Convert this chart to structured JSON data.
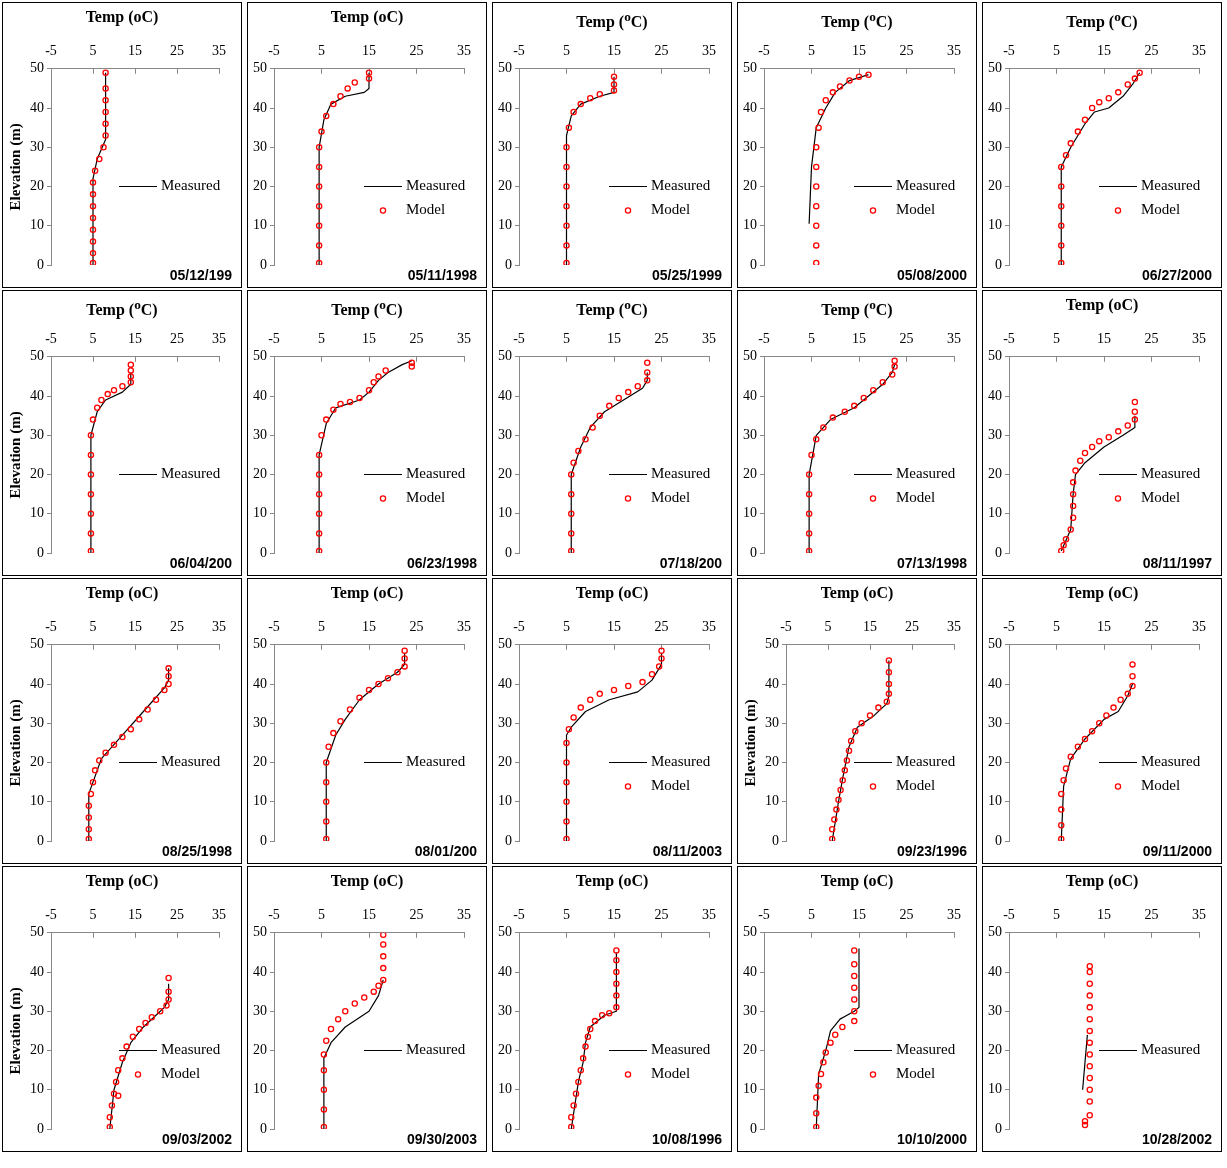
{
  "chart_data": [
    {
      "type": "line",
      "title": "Temp (oC)",
      "ylabel": "Elevation (m)",
      "xlim": [
        -5,
        35
      ],
      "xticks": [
        -5,
        5,
        15,
        25,
        35
      ],
      "ylim": [
        0,
        50
      ],
      "yticks": [
        0,
        10,
        20,
        30,
        40,
        50
      ],
      "legend": "right",
      "annotations": [
        "05/12/199"
      ],
      "series": [
        {
          "name": "Measured",
          "type": "line",
          "color": "#000000",
          "x": [
            5,
            5,
            6,
            8,
            8
          ],
          "values": [
            0,
            22,
            27,
            32,
            49
          ]
        },
        {
          "type": "scatter",
          "color": "#ff0000",
          "marker": "circle",
          "x": [
            5,
            5,
            5,
            5,
            5,
            5,
            5,
            5,
            5.5,
            6.5,
            7.5,
            8,
            8,
            8,
            8,
            8,
            8
          ],
          "values": [
            0.5,
            3,
            6,
            9,
            12,
            15,
            18,
            21,
            24,
            27,
            30,
            33,
            36,
            39,
            42,
            45,
            49
          ]
        }
      ]
    },
    {
      "type": "line",
      "title": "Temp (oC)",
      "xlim": [
        -5,
        35
      ],
      "xticks": [
        -5,
        5,
        15,
        25,
        35
      ],
      "ylim": [
        0,
        50
      ],
      "yticks": [
        0,
        10,
        20,
        30,
        40,
        50
      ],
      "legend": "right",
      "annotations": [
        "05/11/1998"
      ],
      "series": [
        {
          "name": "Measured",
          "type": "line",
          "color": "#000000",
          "x": [
            4.5,
            4.5,
            5.5,
            7,
            10,
            14,
            15,
            15
          ],
          "values": [
            0,
            30,
            37,
            41,
            43,
            44,
            45,
            49
          ]
        },
        {
          "name": "Model",
          "type": "scatter",
          "color": "#ff0000",
          "marker": "circle",
          "x": [
            4.5,
            4.5,
            4.5,
            4.5,
            4.5,
            4.5,
            4.5,
            5,
            6,
            7.5,
            9,
            10.5,
            12,
            15,
            15
          ],
          "values": [
            0.5,
            5,
            10,
            15,
            20,
            25,
            30,
            34,
            38,
            41,
            43,
            45,
            46.5,
            47.5,
            49
          ]
        }
      ]
    },
    {
      "type": "line",
      "title": "Temp ($^{o}$C)",
      "xlim": [
        -5,
        35
      ],
      "xticks": [
        -5,
        5,
        15,
        25,
        35
      ],
      "ylim": [
        0,
        50
      ],
      "yticks": [
        0,
        10,
        20,
        30,
        40,
        50
      ],
      "legend": "right",
      "annotations": [
        "05/25/1999"
      ],
      "series": [
        {
          "name": "Measured",
          "type": "line",
          "color": "#000000",
          "x": [
            5,
            5,
            6,
            8,
            12,
            15,
            15
          ],
          "values": [
            0,
            33,
            38,
            41,
            43,
            44,
            48
          ]
        },
        {
          "name": "Model",
          "type": "scatter",
          "color": "#ff0000",
          "marker": "circle",
          "x": [
            5,
            5,
            5,
            5,
            5,
            5,
            5,
            5.5,
            6.5,
            8,
            10,
            12,
            15,
            15,
            15
          ],
          "values": [
            0.5,
            5,
            10,
            15,
            20,
            25,
            30,
            35,
            39,
            41,
            42.5,
            43.5,
            44.5,
            46,
            48
          ]
        }
      ]
    },
    {
      "type": "line",
      "title": "Temp ($^{o}$C)",
      "xlim": [
        -5,
        35
      ],
      "xticks": [
        -5,
        5,
        15,
        25,
        35
      ],
      "ylim": [
        0,
        50
      ],
      "yticks": [
        0,
        10,
        20,
        30,
        40,
        50
      ],
      "legend": "right",
      "annotations": [
        "05/08/2000"
      ],
      "series": [
        {
          "name": "Measured",
          "type": "line",
          "color": "#000000",
          "x": [
            4.5,
            5,
            6,
            8,
            10,
            13,
            17
          ],
          "values": [
            10.5,
            25,
            35,
            40,
            44,
            47,
            48.5
          ]
        },
        {
          "name": "Model",
          "type": "scatter",
          "color": "#ff0000",
          "marker": "circle",
          "x": [
            6,
            6,
            6,
            6,
            6,
            6,
            6,
            6.5,
            7,
            8,
            9.5,
            11,
            13,
            15,
            17
          ],
          "values": [
            0.5,
            5,
            10,
            15,
            20,
            25,
            30,
            35,
            39,
            42,
            44,
            45.5,
            47,
            48,
            48.5
          ]
        }
      ]
    },
    {
      "type": "line",
      "title": "Temp ($^{o}$C)",
      "xlim": [
        -5,
        35
      ],
      "xticks": [
        -5,
        5,
        15,
        25,
        35
      ],
      "ylim": [
        0,
        50
      ],
      "yticks": [
        0,
        10,
        20,
        30,
        40,
        50
      ],
      "legend": "right",
      "annotations": [
        "06/27/2000"
      ],
      "series": [
        {
          "name": "Measured",
          "type": "line",
          "color": "#000000",
          "x": [
            6,
            6,
            8,
            11,
            13,
            16,
            19,
            21,
            22.5
          ],
          "values": [
            0,
            25,
            30,
            36,
            39,
            40,
            43,
            46,
            49
          ]
        },
        {
          "name": "Model",
          "type": "scatter",
          "color": "#ff0000",
          "marker": "circle",
          "x": [
            6,
            6,
            6,
            6,
            6,
            6,
            7,
            8,
            9.5,
            11,
            12.5,
            14,
            16,
            18,
            20,
            21.5,
            22.5
          ],
          "values": [
            0.5,
            5,
            10,
            15,
            20,
            25,
            28,
            31,
            34,
            37,
            40,
            41.5,
            42.5,
            44,
            46,
            47.5,
            49
          ]
        }
      ]
    },
    {
      "type": "line",
      "title": "Temp ($^{o}$C)",
      "ylabel": "Elevation (m)",
      "xlim": [
        -5,
        35
      ],
      "xticks": [
        -5,
        5,
        15,
        25,
        35
      ],
      "ylim": [
        0,
        50
      ],
      "yticks": [
        0,
        10,
        20,
        30,
        40,
        50
      ],
      "legend": "right",
      "annotations": [
        "06/04/200"
      ],
      "series": [
        {
          "name": "Measured",
          "type": "line",
          "color": "#000000",
          "x": [
            4.5,
            4.5,
            6,
            8,
            12,
            14,
            14
          ],
          "values": [
            0,
            30,
            36,
            39,
            41,
            43,
            46
          ]
        },
        {
          "type": "scatter",
          "color": "#ff0000",
          "marker": "circle",
          "x": [
            4.5,
            4.5,
            4.5,
            4.5,
            4.5,
            4.5,
            4.5,
            5,
            6,
            7,
            8.5,
            10,
            12,
            14,
            14,
            14,
            14
          ],
          "values": [
            0.5,
            5,
            10,
            15,
            20,
            25,
            30,
            34,
            37,
            39,
            40.5,
            41.5,
            42.5,
            43.5,
            45,
            46.5,
            48
          ]
        }
      ]
    },
    {
      "type": "line",
      "title": "Temp ($^{o}$C)",
      "xlim": [
        -5,
        35
      ],
      "xticks": [
        -5,
        5,
        15,
        25,
        35
      ],
      "ylim": [
        0,
        50
      ],
      "yticks": [
        0,
        10,
        20,
        30,
        40,
        50
      ],
      "legend": "right",
      "annotations": [
        "06/23/1998"
      ],
      "series": [
        {
          "name": "Measured",
          "type": "line",
          "color": "#000000",
          "x": [
            4.5,
            4.5,
            6,
            8,
            13,
            15,
            17,
            19,
            22,
            24
          ],
          "values": [
            0,
            25,
            33,
            37,
            39,
            41,
            44,
            46,
            48,
            49
          ]
        },
        {
          "name": "Model",
          "type": "scatter",
          "color": "#ff0000",
          "marker": "circle",
          "x": [
            4.5,
            4.5,
            4.5,
            4.5,
            4.5,
            4.5,
            5,
            6,
            7.5,
            9,
            11,
            13,
            15,
            16,
            17,
            18.5,
            24,
            24
          ],
          "values": [
            0.5,
            5,
            10,
            15,
            20,
            25,
            30,
            34,
            36.5,
            38,
            38.5,
            39.5,
            41.5,
            43.5,
            45,
            46.5,
            47.5,
            48.5
          ]
        }
      ]
    },
    {
      "type": "line",
      "title": "Temp ($^{o}$C)",
      "xlim": [
        -5,
        35
      ],
      "xticks": [
        -5,
        5,
        15,
        25,
        35
      ],
      "ylim": [
        0,
        50
      ],
      "yticks": [
        0,
        10,
        20,
        30,
        40,
        50
      ],
      "legend": "right",
      "annotations": [
        "07/18/200"
      ],
      "series": [
        {
          "name": "Measured",
          "type": "line",
          "color": "#000000",
          "x": [
            6,
            6,
            8,
            10,
            13,
            17,
            21,
            22,
            22
          ],
          "values": [
            0,
            20,
            27,
            32,
            36,
            39,
            42,
            44,
            46
          ]
        },
        {
          "name": "Model",
          "type": "scatter",
          "color": "#ff0000",
          "marker": "circle",
          "x": [
            6,
            6,
            6,
            6,
            6,
            6.5,
            7.5,
            9,
            10.5,
            12,
            14,
            16,
            18,
            20,
            22,
            22,
            22
          ],
          "values": [
            0.5,
            5,
            10,
            15,
            20,
            23,
            26,
            29,
            32,
            35,
            37.5,
            39.5,
            41,
            42.5,
            44,
            46,
            48.5
          ]
        }
      ]
    },
    {
      "type": "line",
      "title": "Temp ($^{o}$C)",
      "xlim": [
        -5,
        35
      ],
      "xticks": [
        -5,
        5,
        15,
        25,
        35
      ],
      "ylim": [
        0,
        50
      ],
      "yticks": [
        0,
        10,
        20,
        30,
        40,
        50
      ],
      "legend": "right",
      "annotations": [
        "07/13/1998"
      ],
      "series": [
        {
          "name": "Measured",
          "type": "line",
          "color": "#000000",
          "x": [
            4.5,
            4.5,
            6,
            9,
            14,
            17,
            20,
            22,
            22.5
          ],
          "values": [
            0,
            20,
            30,
            34,
            37,
            40,
            43,
            46,
            48
          ]
        },
        {
          "name": "Model",
          "type": "scatter",
          "color": "#ff0000",
          "marker": "circle",
          "x": [
            4.5,
            4.5,
            4.5,
            4.5,
            4.5,
            5,
            6,
            7.5,
            9.5,
            12,
            14,
            16,
            18,
            20,
            22,
            22.5,
            22.5
          ],
          "values": [
            0.5,
            5,
            10,
            15,
            20,
            25,
            29,
            32,
            34.5,
            36,
            37.5,
            39.5,
            41.5,
            43.5,
            45.5,
            47.5,
            49
          ]
        }
      ]
    },
    {
      "type": "line",
      "title": "Temp (oC)",
      "xlim": [
        -5,
        35
      ],
      "xticks": [
        -5,
        5,
        15,
        25,
        35
      ],
      "ylim": [
        0,
        50
      ],
      "yticks": [
        0,
        10,
        20,
        30,
        40,
        50
      ],
      "legend": "right",
      "annotations": [
        "08/11/1997"
      ],
      "series": [
        {
          "name": "Measured",
          "type": "line",
          "color": "#000000",
          "x": [
            6,
            8,
            8.5,
            9,
            11,
            15,
            19,
            21.5,
            21.5
          ],
          "values": [
            0.5,
            6,
            15,
            20,
            23,
            27,
            30,
            32,
            35
          ]
        },
        {
          "name": "Model",
          "type": "scatter",
          "color": "#ff0000",
          "marker": "circle",
          "x": [
            6,
            6.5,
            7,
            8,
            8.5,
            8.5,
            8.5,
            8.5,
            9,
            10,
            11,
            12.5,
            14,
            16,
            18,
            20,
            21.5,
            21.5,
            21.5
          ],
          "values": [
            0.5,
            2,
            3.5,
            6,
            9,
            12,
            15,
            18,
            21,
            23.5,
            25.5,
            27,
            28.5,
            29.5,
            31,
            32.5,
            34,
            36,
            38.5
          ]
        }
      ]
    },
    {
      "type": "line",
      "title": "Temp (oC)",
      "ylabel": "Elevation (m)",
      "xlim": [
        -5,
        35
      ],
      "xticks": [
        -5,
        5,
        15,
        25,
        35
      ],
      "ylim": [
        0,
        50
      ],
      "yticks": [
        0,
        10,
        20,
        30,
        40,
        50
      ],
      "legend": "right",
      "annotations": [
        "08/25/1998"
      ],
      "series": [
        {
          "name": "Measured",
          "type": "line",
          "color": "#000000",
          "x": [
            4,
            4,
            6,
            7,
            12,
            17,
            22,
            23,
            23
          ],
          "values": [
            0,
            12,
            18,
            21,
            27,
            33,
            39,
            41,
            44
          ]
        },
        {
          "type": "scatter",
          "color": "#ff0000",
          "marker": "circle",
          "x": [
            4,
            4,
            4,
            4,
            4.5,
            5,
            5.5,
            6.5,
            8,
            10,
            12,
            14,
            16,
            18,
            20,
            22,
            23,
            23,
            23
          ],
          "values": [
            0.5,
            3,
            6,
            9,
            12,
            15,
            18,
            20.5,
            22.5,
            24.5,
            26.5,
            28.5,
            31,
            33.5,
            36,
            38.5,
            40,
            42,
            44
          ]
        }
      ]
    },
    {
      "type": "line",
      "title": "Temp (oC)",
      "xlim": [
        -5,
        35
      ],
      "xticks": [
        -5,
        5,
        15,
        25,
        35
      ],
      "ylim": [
        0,
        50
      ],
      "yticks": [
        0,
        10,
        20,
        30,
        40,
        50
      ],
      "legend": "right",
      "annotations": [
        "08/01/200"
      ],
      "series": [
        {
          "name": "Measured",
          "type": "line",
          "color": "#000000",
          "x": [
            6,
            6,
            8,
            10,
            13,
            17,
            21,
            22.5,
            22.5
          ],
          "values": [
            0,
            20,
            27,
            31,
            36,
            40,
            43,
            45,
            48
          ]
        },
        {
          "type": "scatter",
          "color": "#ff0000",
          "marker": "circle",
          "x": [
            6,
            6,
            6,
            6,
            6,
            6.5,
            7.5,
            9,
            11,
            13,
            15,
            17,
            19,
            21,
            22.5,
            22.5,
            22.5
          ],
          "values": [
            0.5,
            5,
            10,
            15,
            20,
            24,
            27.5,
            30.5,
            33.5,
            36.5,
            38.5,
            40,
            41.5,
            43,
            44.5,
            46.5,
            48.5
          ]
        }
      ]
    },
    {
      "type": "line",
      "title": "Temp (oC)",
      "xlim": [
        -5,
        35
      ],
      "xticks": [
        -5,
        5,
        15,
        25,
        35
      ],
      "ylim": [
        0,
        50
      ],
      "yticks": [
        0,
        10,
        20,
        30,
        40,
        50
      ],
      "legend": "right",
      "annotations": [
        "08/11/2003"
      ],
      "series": [
        {
          "name": "Measured",
          "type": "line",
          "color": "#000000",
          "x": [
            5,
            5,
            6,
            9,
            14,
            20,
            23,
            25,
            25
          ],
          "values": [
            0,
            27,
            29,
            33,
            36,
            38,
            41,
            45,
            48
          ]
        },
        {
          "name": "Model",
          "type": "scatter",
          "color": "#ff0000",
          "marker": "circle",
          "x": [
            5,
            5,
            5,
            5,
            5,
            5,
            5.5,
            6.5,
            8,
            10,
            12,
            15,
            18,
            21,
            23,
            24.5,
            25,
            25
          ],
          "values": [
            0.5,
            5,
            10,
            15,
            20,
            25,
            28.5,
            31.5,
            34,
            36,
            37.5,
            38.5,
            39.5,
            40.5,
            42.5,
            44.5,
            46.5,
            48.5
          ]
        }
      ]
    },
    {
      "type": "line",
      "title": "Temp (oC)",
      "ylabel": "Elevation (m)",
      "xlim": [
        -5,
        35
      ],
      "xticks": [
        -5,
        5,
        15,
        25,
        35
      ],
      "ylim": [
        0,
        50
      ],
      "yticks": [
        0,
        10,
        20,
        30,
        40,
        50
      ],
      "legend": "right",
      "annotations": [
        "09/23/1996"
      ],
      "series": [
        {
          "name": "Measured",
          "type": "line",
          "color": "#000000",
          "x": [
            6,
            7.5,
            8.5,
            10,
            12,
            16,
            19,
            19.5,
            19.5
          ],
          "values": [
            0,
            10,
            16,
            24,
            29,
            32,
            35,
            37,
            46
          ]
        },
        {
          "name": "Model",
          "type": "scatter",
          "color": "#ff0000",
          "marker": "circle",
          "x": [
            6,
            6,
            6.5,
            7,
            7.5,
            8,
            8.5,
            9,
            9.5,
            10,
            10.5,
            11.5,
            13,
            15,
            17,
            19,
            19.5,
            19.5,
            19.5,
            19.5
          ],
          "values": [
            0.5,
            3,
            5.5,
            8,
            10.5,
            13,
            15.5,
            18,
            20.5,
            23,
            25.5,
            28,
            30,
            32,
            34,
            35.5,
            37.5,
            40,
            43,
            46
          ]
        }
      ]
    },
    {
      "type": "line",
      "title": "Temp (oC)",
      "xlim": [
        -5,
        35
      ],
      "xticks": [
        -5,
        5,
        15,
        25,
        35
      ],
      "ylim": [
        0,
        50
      ],
      "yticks": [
        0,
        10,
        20,
        30,
        40,
        50
      ],
      "legend": "right",
      "annotations": [
        "09/11/2000"
      ],
      "series": [
        {
          "name": "Measured",
          "type": "line",
          "color": "#000000",
          "x": [
            6,
            6.5,
            8,
            11,
            15,
            18,
            20,
            21
          ],
          "values": [
            0,
            14,
            21,
            26,
            31,
            33,
            37,
            40
          ]
        },
        {
          "name": "Model",
          "type": "scatter",
          "color": "#ff0000",
          "marker": "circle",
          "x": [
            6,
            6,
            6,
            6,
            6.5,
            7,
            8,
            9.5,
            11,
            12.5,
            14,
            15.5,
            17,
            18.5,
            20,
            21,
            21,
            21
          ],
          "values": [
            0.5,
            4,
            8,
            12,
            15.5,
            18.5,
            21.5,
            24,
            26,
            28,
            30,
            32,
            34,
            36,
            37.5,
            39.5,
            42,
            45
          ]
        }
      ]
    },
    {
      "type": "line",
      "title": "Temp (oC)",
      "ylabel": "Elevation (m)",
      "xlim": [
        -5,
        35
      ],
      "xticks": [
        -5,
        5,
        15,
        25,
        35
      ],
      "ylim": [
        0,
        50
      ],
      "yticks": [
        0,
        10,
        20,
        30,
        40,
        50
      ],
      "legend": "right",
      "annotations": [
        "09/03/2002"
      ],
      "series": [
        {
          "name": "Measured",
          "type": "line",
          "color": "#000000",
          "x": [
            9,
            10,
            12,
            14,
            17,
            20,
            22,
            23,
            23
          ],
          "values": [
            0,
            10,
            17,
            22,
            26,
            29,
            31,
            33,
            37
          ]
        },
        {
          "name": "Model",
          "type": "scatter",
          "color": "#ff0000",
          "marker": "circle",
          "x": [
            9,
            9,
            9.5,
            10,
            10.5,
            11,
            12,
            13,
            14.5,
            16,
            17.5,
            19,
            21,
            22.5,
            23,
            23,
            23,
            11
          ],
          "values": [
            0.5,
            3,
            6,
            9,
            12,
            15,
            18,
            21,
            23.5,
            25.5,
            27,
            28.5,
            30,
            31.5,
            33,
            35,
            38.5,
            8.5
          ]
        }
      ]
    },
    {
      "type": "line",
      "title": "Temp (oC)",
      "xlim": [
        -5,
        35
      ],
      "xticks": [
        -5,
        5,
        15,
        25,
        35
      ],
      "ylim": [
        0,
        50
      ],
      "yticks": [
        0,
        10,
        20,
        30,
        40,
        50
      ],
      "legend": "right",
      "annotations": [
        "09/30/2003"
      ],
      "series": [
        {
          "name": "Measured",
          "type": "line",
          "color": "#000000",
          "x": [
            5.5,
            5.5,
            7,
            10,
            15,
            17,
            18
          ],
          "values": [
            0,
            18,
            22,
            26,
            30,
            34,
            38
          ]
        },
        {
          "type": "scatter",
          "color": "#ff0000",
          "marker": "circle",
          "x": [
            5.5,
            5.5,
            5.5,
            5.5,
            5.5,
            6,
            7,
            8.5,
            10,
            12,
            14,
            16,
            17,
            18,
            18,
            18,
            18,
            18
          ],
          "values": [
            0.5,
            5,
            10,
            15,
            19,
            22.5,
            25.5,
            28,
            30,
            32,
            33.5,
            35,
            36.5,
            38,
            41,
            44,
            47,
            49.5
          ]
        }
      ]
    },
    {
      "type": "line",
      "title": "Temp (oC)",
      "xlim": [
        -5,
        35
      ],
      "xticks": [
        -5,
        5,
        15,
        25,
        35
      ],
      "ylim": [
        0,
        50
      ],
      "yticks": [
        0,
        10,
        20,
        30,
        40,
        50
      ],
      "legend": "right",
      "annotations": [
        "10/08/1996"
      ],
      "series": [
        {
          "name": "Measured",
          "type": "line",
          "color": "#000000",
          "x": [
            6,
            7.5,
            8.5,
            9,
            10,
            13,
            15.5,
            15.5
          ],
          "values": [
            0,
            12,
            17,
            22,
            26,
            29,
            30,
            45
          ]
        },
        {
          "name": "Model",
          "type": "scatter",
          "color": "#ff0000",
          "marker": "circle",
          "x": [
            6,
            6,
            6.5,
            7,
            7.5,
            8,
            8.5,
            9,
            9.5,
            10,
            11,
            12.5,
            14,
            15.5,
            15.5,
            15.5,
            15.5,
            15.5,
            15.5
          ],
          "values": [
            0.5,
            3,
            6,
            9,
            12,
            15,
            18,
            21,
            23.5,
            25.5,
            27.5,
            29,
            29.5,
            31,
            34,
            37,
            40,
            43,
            45.5
          ]
        }
      ]
    },
    {
      "type": "line",
      "title": "Temp (oC)",
      "xlim": [
        -5,
        35
      ],
      "xticks": [
        -5,
        5,
        15,
        25,
        35
      ],
      "ylim": [
        0,
        50
      ],
      "yticks": [
        0,
        10,
        20,
        30,
        40,
        50
      ],
      "legend": "right",
      "annotations": [
        "10/10/2000"
      ],
      "series": [
        {
          "name": "Measured",
          "type": "line",
          "color": "#000000",
          "x": [
            6,
            6.5,
            8,
            9,
            11,
            14,
            15,
            15
          ],
          "values": [
            0,
            14,
            20,
            25,
            28,
            30,
            31,
            46
          ]
        },
        {
          "name": "Model",
          "type": "scatter",
          "color": "#ff0000",
          "marker": "circle",
          "x": [
            6,
            6,
            6,
            6.5,
            7,
            7.5,
            8,
            9,
            10,
            11.5,
            14,
            14,
            14,
            14,
            14,
            14,
            14
          ],
          "values": [
            0.5,
            4,
            8,
            11,
            14,
            17,
            19.5,
            22,
            24,
            26,
            27.5,
            30,
            33,
            36,
            39,
            42,
            45.5
          ]
        }
      ]
    },
    {
      "type": "line",
      "title": "Temp (oC)",
      "xlim": [
        -5,
        35
      ],
      "xticks": [
        -5,
        5,
        15,
        25,
        35
      ],
      "ylim": [
        0,
        50
      ],
      "yticks": [
        0,
        10,
        20,
        30,
        40,
        50
      ],
      "legend": "right",
      "annotations": [
        "10/28/2002"
      ],
      "series": [
        {
          "name": "Measured",
          "type": "line",
          "color": "#000000",
          "x": [
            10.5,
            11,
            11.5
          ],
          "values": [
            10,
            17,
            24
          ]
        },
        {
          "type": "scatter",
          "color": "#ff0000",
          "marker": "circle",
          "x": [
            11,
            11,
            12,
            12,
            12,
            12,
            12,
            12,
            12,
            12,
            12,
            12,
            12,
            12,
            12,
            12
          ],
          "values": [
            1,
            2,
            3.5,
            7,
            10,
            13,
            16,
            19,
            22,
            25,
            28,
            31,
            34,
            37,
            40,
            41.5
          ]
        }
      ]
    }
  ]
}
